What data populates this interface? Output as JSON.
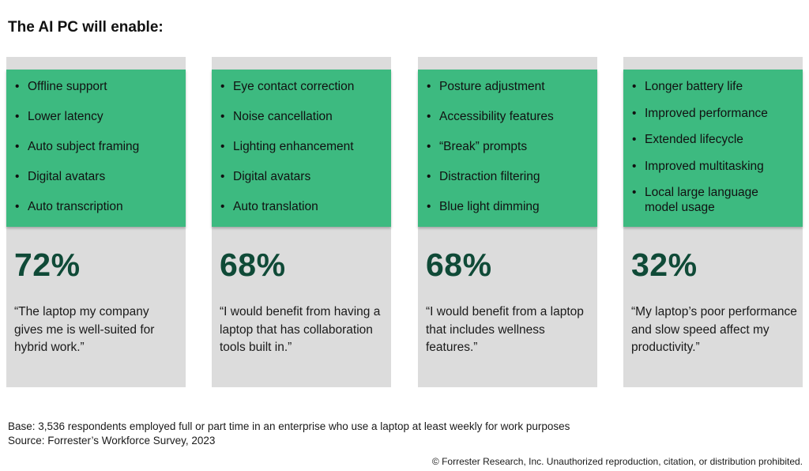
{
  "title": "The AI PC will enable:",
  "cards": [
    {
      "items": [
        "Offline support",
        "Lower latency",
        "Auto subject framing",
        "Digital avatars",
        "Auto transcription"
      ],
      "percent": "72%",
      "quote": "“The laptop my company gives me is well-suited for hybrid work.”"
    },
    {
      "items": [
        "Eye contact correction",
        "Noise cancellation",
        "Lighting enhancement",
        "Digital avatars",
        "Auto translation"
      ],
      "percent": "68%",
      "quote": "“I would benefit from having a laptop that has collaboration tools built in.”"
    },
    {
      "items": [
        "Posture adjustment",
        "Accessibility features",
        "“Break” prompts",
        "Distraction filtering",
        "Blue light dimming"
      ],
      "percent": "68%",
      "quote": "“I would benefit from a laptop that includes wellness features.”"
    },
    {
      "items": [
        "Longer battery life",
        "Improved performance",
        "Extended lifecycle",
        "Improved multitasking",
        "Local large language model usage"
      ],
      "percent": "32%",
      "quote": "“My laptop’s poor performance and slow speed affect my productivity.”"
    }
  ],
  "footer": {
    "base": "Base: 3,536 respondents employed full or part time in an enterprise who use a laptop at least weekly for work purposes",
    "source": "Source: Forrester’s Workforce Survey, 2023",
    "copyright": "© Forrester Research, Inc. Unauthorized reproduction, citation, or distribution prohibited."
  },
  "colors": {
    "card_background": "#dcdcdc",
    "feature_panel": "#3dba80",
    "percent_text": "#0f4a37"
  }
}
